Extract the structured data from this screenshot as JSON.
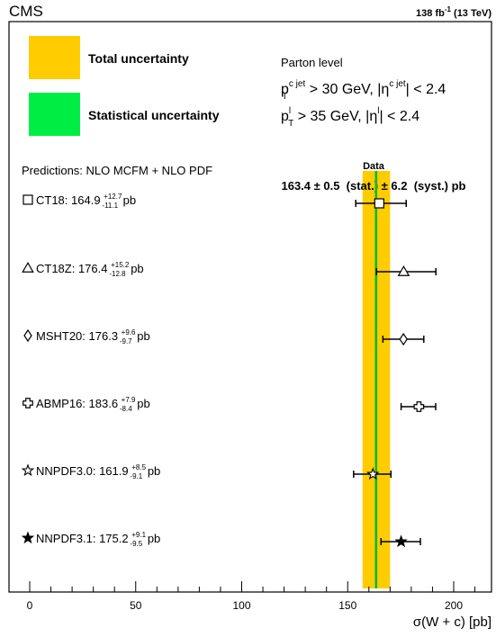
{
  "header": {
    "experiment": "CMS",
    "lumi_value": "138 fb",
    "lumi_exp": "-1",
    "lumi_energy": " (13 TeV)"
  },
  "legend": {
    "total_label": "Total uncertainty",
    "total_color": "#ffcc00",
    "stat_label": "Statistical uncertainty",
    "stat_color": "#00ee44"
  },
  "cuts": {
    "level": "Parton level",
    "line1": {
      "p": "p",
      "sup": "c jet",
      "sub": "T",
      "mid": " > 30 GeV, |η",
      "sup2": "c jet",
      "end": "| < 2.4"
    },
    "line2": {
      "p": "p",
      "sup": "l",
      "sub": "T",
      "mid": " > 35 GeV, |η",
      "sup2": "l",
      "end": "| < 2.4"
    }
  },
  "predictions_header": "Predictions: NLO MCFM + NLO PDF",
  "data_label": {
    "title": "Data",
    "text": "163.4 ± 0.5  (stat.) ± 6.2  (syst.) pb"
  },
  "xaxis": {
    "label": "σ(W + c) [pb]",
    "ticks": [
      "0",
      "50",
      "100",
      "150",
      "200"
    ]
  },
  "chart_data": {
    "type": "scatter",
    "title": "",
    "xlabel": "σ(W + c) [pb]",
    "xlim": [
      -10,
      220
    ],
    "measurement": {
      "value": 163.4,
      "stat": 0.5,
      "syst": 6.2,
      "total_band": [
        157.0,
        170.0
      ],
      "stat_band": [
        162.9,
        163.9
      ]
    },
    "predictions": [
      {
        "name": "CT18",
        "value": 164.9,
        "up": 12.7,
        "down": 11.1,
        "marker": "open-square",
        "label_main": "CT18: 164.9",
        "label_up": "+12.7",
        "label_down": "-11.1",
        "unit": "pb"
      },
      {
        "name": "CT18Z",
        "value": 176.4,
        "up": 15.2,
        "down": 12.8,
        "marker": "open-triangle",
        "label_main": "CT18Z: 176.4",
        "label_up": "+15.2",
        "label_down": "-12.8",
        "unit": "pb"
      },
      {
        "name": "MSHT20",
        "value": 176.3,
        "up": 9.6,
        "down": 9.7,
        "marker": "open-diamond",
        "label_main": "MSHT20: 176.3",
        "label_up": "+9.6",
        "label_down": "-9.7",
        "unit": "pb"
      },
      {
        "name": "ABMP16",
        "value": 183.6,
        "up": 7.9,
        "down": 8.4,
        "marker": "open-cross",
        "label_main": "ABMP16: 183.6",
        "label_up": "+7.9",
        "label_down": "-8.4",
        "unit": "pb"
      },
      {
        "name": "NNPDF3.0",
        "value": 161.9,
        "up": 8.5,
        "down": 9.1,
        "marker": "open-star",
        "label_main": "NNPDF3.0: 161.9",
        "label_up": "+8.5",
        "label_down": "-9.1",
        "unit": "pb"
      },
      {
        "name": "NNPDF3.1",
        "value": 175.2,
        "up": 9.1,
        "down": 9.5,
        "marker": "filled-star",
        "label_main": "NNPDF3.1: 175.2",
        "label_up": "+9.1",
        "label_down": "-9.5",
        "unit": "pb"
      }
    ]
  }
}
